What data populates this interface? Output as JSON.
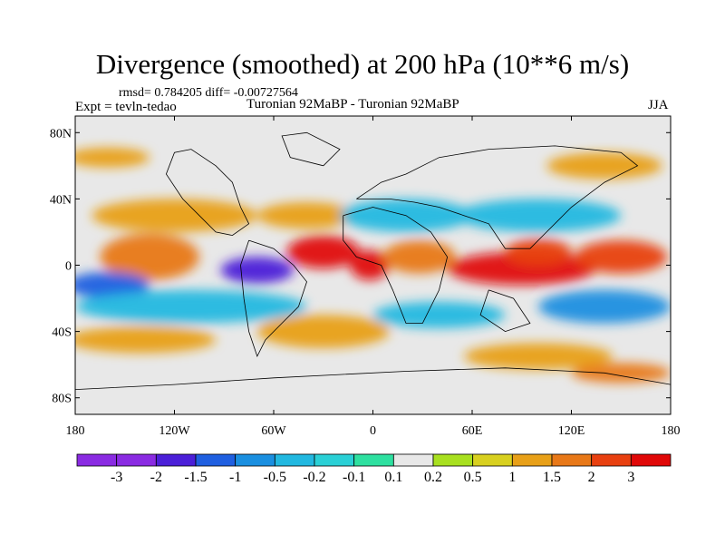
{
  "chart_data": {
    "type": "heatmap",
    "title": "Divergence (smoothed) at 200 hPa (10**6 m/s)",
    "stats": "rmsd= 0.784205 diff= -0.00727564",
    "expt": "Expt = tevln-tedao",
    "period": "Turonian  92MaBP - Turonian  92MaBP",
    "season": "JJA",
    "x_ticks": [
      {
        "value": -180,
        "label": "180"
      },
      {
        "value": -120,
        "label": "120W"
      },
      {
        "value": -60,
        "label": "60W"
      },
      {
        "value": 0,
        "label": "0"
      },
      {
        "value": 60,
        "label": "60E"
      },
      {
        "value": 120,
        "label": "120E"
      },
      {
        "value": 180,
        "label": "180"
      }
    ],
    "y_ticks": [
      {
        "value": 80,
        "label": "80N"
      },
      {
        "value": 40,
        "label": "40N"
      },
      {
        "value": 0,
        "label": "0"
      },
      {
        "value": -40,
        "label": "40S"
      },
      {
        "value": -80,
        "label": "80S"
      }
    ],
    "xlim": [
      -180,
      180
    ],
    "ylim": [
      -90,
      90
    ],
    "colorbar": {
      "labels": [
        "-3",
        "-2",
        "-1.5",
        "-1",
        "-0.5",
        "-0.2",
        "-0.1",
        "0.1",
        "0.2",
        "0.5",
        "1",
        "1.5",
        "2",
        "3"
      ],
      "colors": [
        "#8a2be2",
        "#4b1fd8",
        "#1f5fe0",
        "#1a8fe0",
        "#22b8e0",
        "#2ad0d6",
        "#2ee0a0",
        "#e8e8e8",
        "#a8e020",
        "#d8d020",
        "#e8a018",
        "#e87818",
        "#e84010",
        "#e00808"
      ]
    },
    "field_blobs": [
      {
        "lon": -135,
        "lat": 5,
        "rx": 30,
        "ry": 14,
        "value": 1.2
      },
      {
        "lon": -160,
        "lat": -12,
        "rx": 25,
        "ry": 8,
        "value": -1.6
      },
      {
        "lon": -110,
        "lat": -25,
        "rx": 70,
        "ry": 10,
        "value": -0.8
      },
      {
        "lon": -70,
        "lat": -3,
        "rx": 22,
        "ry": 8,
        "value": -2.2
      },
      {
        "lon": -30,
        "lat": 8,
        "rx": 22,
        "ry": 10,
        "value": 2.3
      },
      {
        "lon": -2,
        "lat": 0,
        "rx": 12,
        "ry": 9,
        "value": 3.0
      },
      {
        "lon": 28,
        "lat": 5,
        "rx": 22,
        "ry": 10,
        "value": 1.4
      },
      {
        "lon": 90,
        "lat": -2,
        "rx": 45,
        "ry": 10,
        "value": 2.4
      },
      {
        "lon": 100,
        "lat": 8,
        "rx": 20,
        "ry": 8,
        "value": 1.8
      },
      {
        "lon": 150,
        "lat": 5,
        "rx": 28,
        "ry": 10,
        "value": 1.6
      },
      {
        "lon": 40,
        "lat": -30,
        "rx": 40,
        "ry": 8,
        "value": -0.7
      },
      {
        "lon": 140,
        "lat": -25,
        "rx": 40,
        "ry": 10,
        "value": -1.2
      },
      {
        "lon": -120,
        "lat": 30,
        "rx": 50,
        "ry": 10,
        "value": 0.8
      },
      {
        "lon": -40,
        "lat": 30,
        "rx": 30,
        "ry": 8,
        "value": 0.9
      },
      {
        "lon": 20,
        "lat": 30,
        "rx": 40,
        "ry": 10,
        "value": -0.6
      },
      {
        "lon": 100,
        "lat": 30,
        "rx": 50,
        "ry": 10,
        "value": -0.7
      },
      {
        "lon": -140,
        "lat": -45,
        "rx": 45,
        "ry": 8,
        "value": 0.7
      },
      {
        "lon": -30,
        "lat": -40,
        "rx": 40,
        "ry": 10,
        "value": 0.6
      },
      {
        "lon": 100,
        "lat": -55,
        "rx": 45,
        "ry": 8,
        "value": 0.6
      },
      {
        "lon": 150,
        "lat": -65,
        "rx": 30,
        "ry": 6,
        "value": 1.4
      },
      {
        "lon": -160,
        "lat": 65,
        "rx": 25,
        "ry": 6,
        "value": 0.7
      },
      {
        "lon": 140,
        "lat": 60,
        "rx": 35,
        "ry": 8,
        "value": 0.6
      }
    ]
  }
}
